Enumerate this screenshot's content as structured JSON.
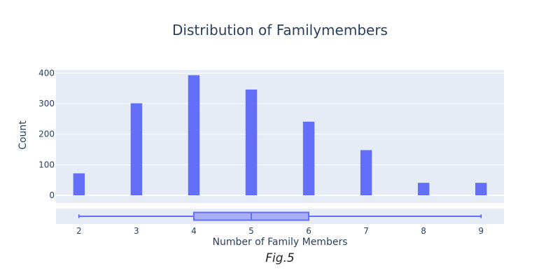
{
  "chart_data": {
    "type": "bar",
    "title": "Distribution of Familymembers",
    "xlabel": "Number of Family Members",
    "ylabel": "Count",
    "caption": "Fig.5",
    "x": [
      2,
      3,
      4,
      5,
      6,
      7,
      8,
      9
    ],
    "values": [
      72,
      301,
      393,
      346,
      241,
      148,
      41,
      41
    ],
    "xlim": [
      1.6,
      9.4
    ],
    "ylim": [
      -25,
      410
    ],
    "yticks": [
      0,
      100,
      200,
      300,
      400
    ],
    "xticks": [
      2,
      3,
      4,
      5,
      6,
      7,
      8,
      9
    ],
    "grid": true,
    "colors": {
      "bar": "#636efa",
      "plot_bg": "#e5ecf6",
      "box_fill": "#a9aef5"
    },
    "marginal_box": {
      "min": 2,
      "q1": 4,
      "median": 5,
      "q3": 6,
      "max": 9
    }
  }
}
